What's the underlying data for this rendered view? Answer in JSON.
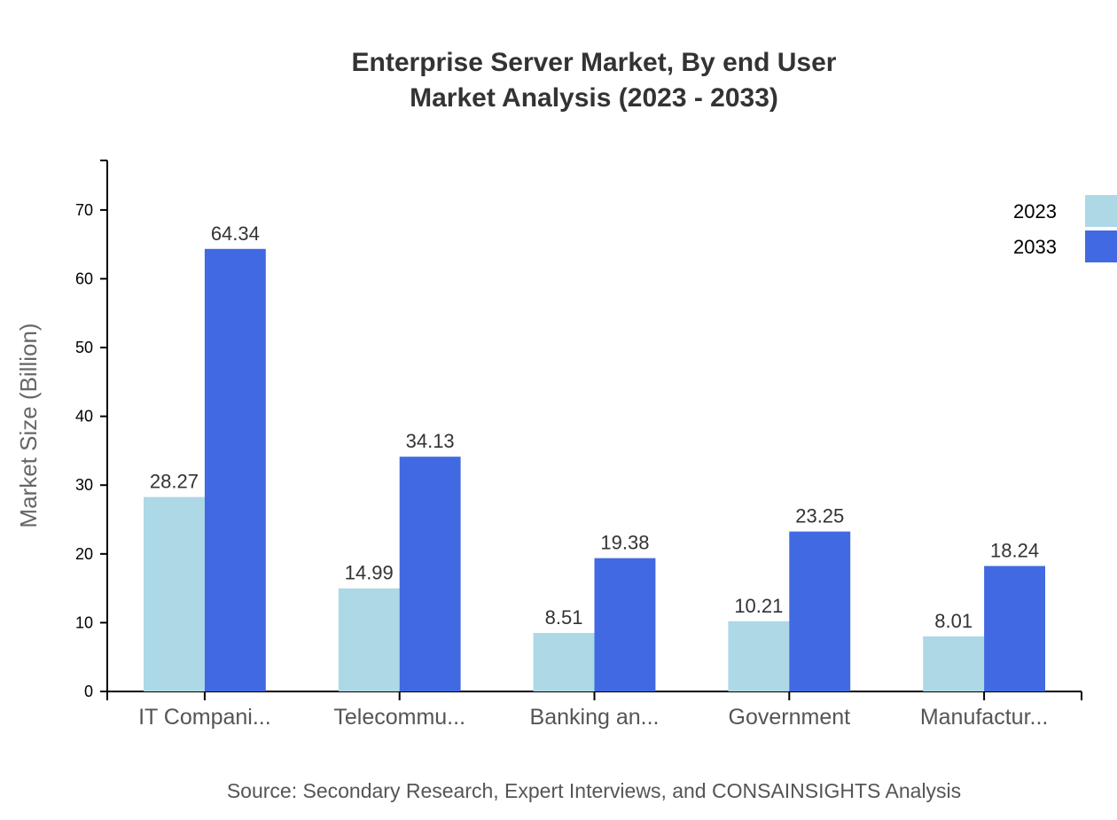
{
  "chart_data": {
    "type": "bar",
    "title": "Enterprise Server Market, By end User",
    "subtitle": "Market Analysis (2023 - 2033)",
    "xlabel": "",
    "ylabel": "Market Size (Billion)",
    "ylim": [
      0,
      77.2
    ],
    "yticks": [
      0,
      10,
      20,
      30,
      40,
      50,
      60,
      70
    ],
    "grid": false,
    "legend_position": "top-right",
    "categories": [
      "IT Compani...",
      "Telecommu...",
      "Banking an...",
      "Government",
      "Manufactur..."
    ],
    "series": [
      {
        "name": "2023",
        "color": "#ADD8E6",
        "values": [
          28.27,
          14.99,
          8.51,
          10.21,
          8.01
        ]
      },
      {
        "name": "2033",
        "color": "#4169E1",
        "values": [
          64.34,
          34.13,
          19.38,
          23.25,
          18.24
        ]
      }
    ],
    "source": "Source: Secondary Research, Expert Interviews, and CONSAINSIGHTS Analysis"
  }
}
